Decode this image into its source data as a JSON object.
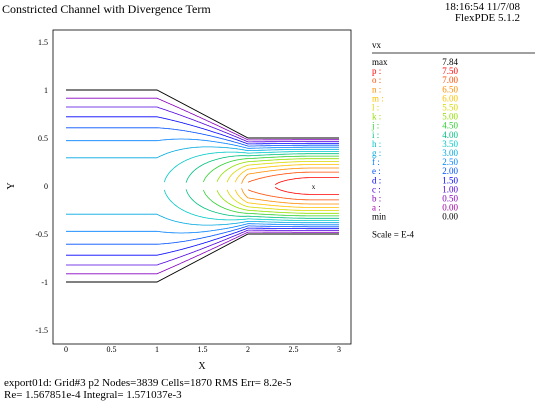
{
  "header": {
    "title": "Constricted Channel with Divergence Term",
    "time": "18:16:54 11/7/08",
    "software": "FlexPDE 5.1.2"
  },
  "footer": {
    "line1": "export01d:  Grid#3  p2  Nodes=3839 Cells=1870 RMS Err= 8.2e-5",
    "line2": "Re= 1.567851e-4  Integral= 1.571037e-3"
  },
  "chart_data": {
    "type": "contour",
    "variable": "vx",
    "xlabel": "X",
    "ylabel": "Y",
    "xlim": [
      -0.1,
      3.05
    ],
    "ylim": [
      -1.75,
      1.55
    ],
    "xticks": [
      "0",
      "0.5",
      "1",
      "1.5",
      "2",
      "2.5",
      "3"
    ],
    "xtick_values": [
      0,
      0.5,
      1,
      1.5,
      2,
      2.5,
      3
    ],
    "yticks": [
      "1.5",
      "1",
      "0.5",
      "0",
      "-0.5",
      "-1",
      "-1.5"
    ],
    "ytick_values": [
      1.5,
      1,
      0.5,
      0,
      -0.5,
      -1,
      -1.5
    ],
    "domain": {
      "inlet_x": [
        0,
        1
      ],
      "inlet_half_width": 1.0,
      "contraction_x": [
        1,
        2
      ],
      "outlet_x": [
        2,
        3
      ],
      "outlet_half_width": 0.5
    },
    "legend": {
      "title": "vx",
      "max": {
        "key": "max",
        "value": "7.84"
      },
      "levels": [
        {
          "key": "p",
          "value": "7.50",
          "color": "#ff0000"
        },
        {
          "key": "o",
          "value": "7.00",
          "color": "#ff4a00"
        },
        {
          "key": "n",
          "value": "6.50",
          "color": "#ff8c00"
        },
        {
          "key": "m",
          "value": "6.00",
          "color": "#ffc000"
        },
        {
          "key": "l",
          "value": "5.50",
          "color": "#d8d800"
        },
        {
          "key": "k",
          "value": "5.00",
          "color": "#90e000"
        },
        {
          "key": "j",
          "value": "4.50",
          "color": "#30d030"
        },
        {
          "key": "i",
          "value": "4.00",
          "color": "#00c080"
        },
        {
          "key": "h",
          "value": "3.50",
          "color": "#00c8c8"
        },
        {
          "key": "g",
          "value": "3.00",
          "color": "#00a8e0"
        },
        {
          "key": "f",
          "value": "2.50",
          "color": "#0080ff"
        },
        {
          "key": "e",
          "value": "2.00",
          "color": "#0050ff"
        },
        {
          "key": "d",
          "value": "1.50",
          "color": "#0000ff"
        },
        {
          "key": "c",
          "value": "1.00",
          "color": "#5000e0"
        },
        {
          "key": "b",
          "value": "0.50",
          "color": "#8800c0"
        },
        {
          "key": "a",
          "value": "0.00",
          "color": "#a000a0"
        }
      ],
      "min": {
        "key": "min",
        "value": "0.00"
      },
      "scale": "Scale = E-4"
    },
    "max_marker": "x"
  }
}
